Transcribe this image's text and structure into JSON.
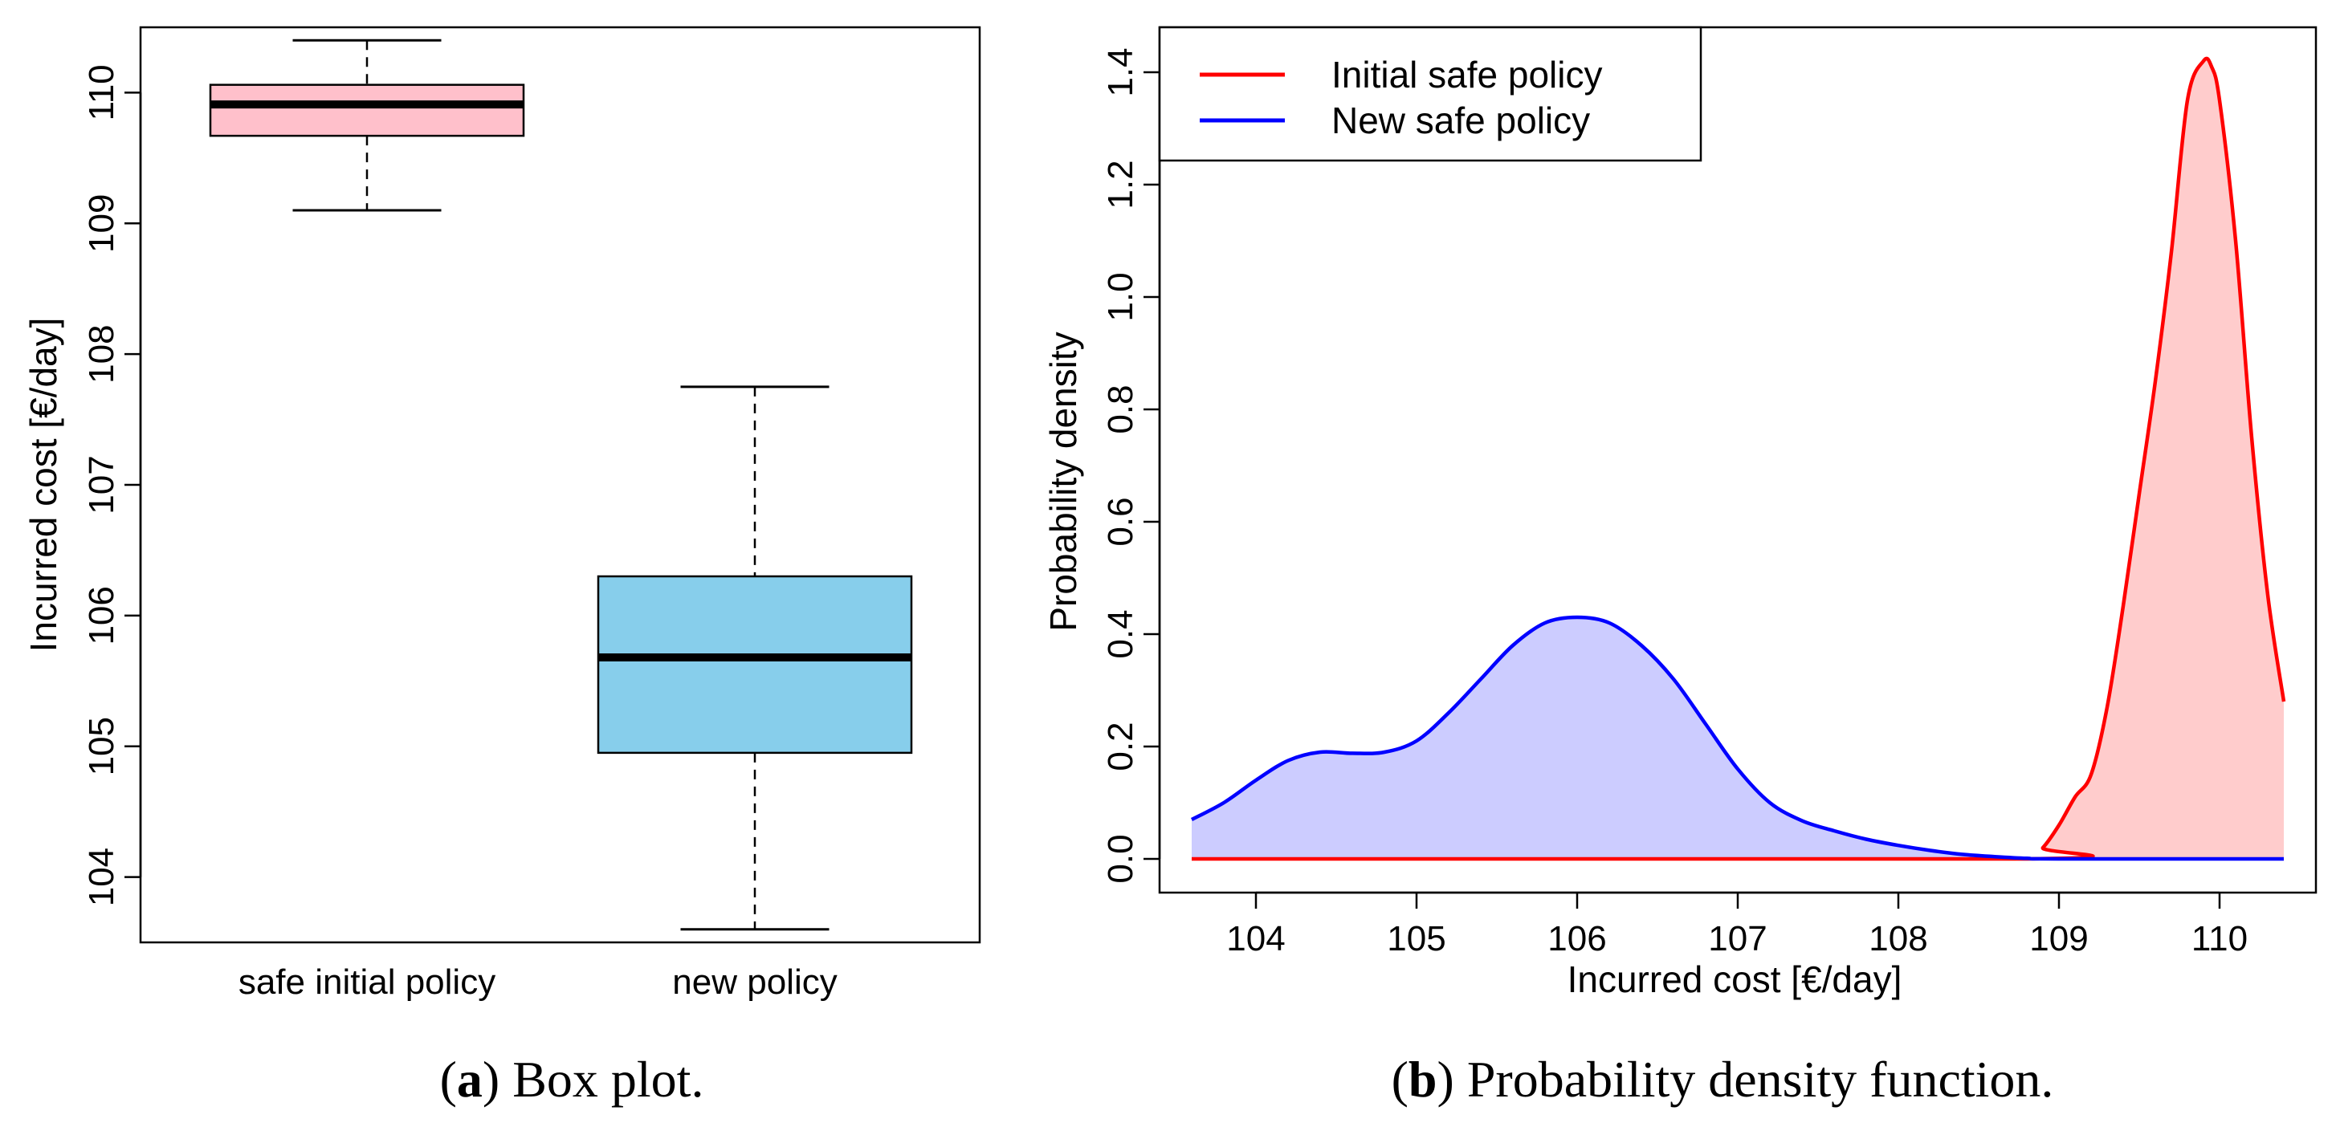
{
  "chart_data": [
    {
      "type": "box",
      "caption": {
        "label": "a",
        "text": "Box plot."
      },
      "ylabel": "Incurred cost [€/day]",
      "ylim": [
        103.5,
        110.5
      ],
      "yticks": [
        104,
        105,
        106,
        107,
        108,
        109,
        110
      ],
      "categories": [
        "safe initial policy",
        "new policy"
      ],
      "boxes": [
        {
          "name": "safe initial policy",
          "min": 109.1,
          "q1": 109.67,
          "median": 109.91,
          "q3": 110.06,
          "max": 110.4,
          "fill": "#ffc0cb"
        },
        {
          "name": "new policy",
          "min": 103.6,
          "q1": 104.95,
          "median": 105.68,
          "q3": 106.3,
          "max": 107.75,
          "fill": "#87ceeb"
        }
      ]
    },
    {
      "type": "area",
      "caption": {
        "label": "b",
        "text": "Probability density function."
      },
      "xlabel": "Incurred cost [€/day]",
      "ylabel": "Probability density",
      "xlim": [
        103.4,
        110.6
      ],
      "ylim": [
        -0.06,
        1.48
      ],
      "xticks": [
        104,
        105,
        106,
        107,
        108,
        109,
        110
      ],
      "yticks": [
        0.0,
        0.2,
        0.4,
        0.6,
        0.8,
        1.0,
        1.2,
        1.4
      ],
      "ytick_labels": [
        "0.0",
        "0.2",
        "0.4",
        "0.6",
        "0.8",
        "1.0",
        "1.2",
        "1.4"
      ],
      "legend": {
        "position": "top-left"
      },
      "series": [
        {
          "name": "Initial safe policy",
          "color": "#ff0000",
          "fill": "#ffcccc",
          "x": [
            103.6,
            108.8,
            108.9,
            109.0,
            109.1,
            109.2,
            109.3,
            109.4,
            109.5,
            109.6,
            109.7,
            109.8,
            109.9,
            109.95,
            110.0,
            110.1,
            110.2,
            110.3,
            110.4
          ],
          "y": [
            0.0,
            0.0,
            0.02,
            0.06,
            0.11,
            0.15,
            0.27,
            0.45,
            0.65,
            0.85,
            1.08,
            1.35,
            1.42,
            1.41,
            1.35,
            1.1,
            0.75,
            0.47,
            0.28
          ]
        },
        {
          "name": "New safe policy",
          "color": "#0000ff",
          "fill": "#ccccff",
          "x": [
            103.6,
            103.8,
            104.0,
            104.2,
            104.4,
            104.6,
            104.8,
            105.0,
            105.2,
            105.4,
            105.6,
            105.8,
            106.0,
            106.2,
            106.4,
            106.6,
            106.8,
            107.0,
            107.2,
            107.4,
            107.6,
            107.8,
            108.0,
            108.2,
            108.4,
            108.6,
            108.8,
            109.0,
            110.4
          ],
          "y": [
            0.07,
            0.1,
            0.14,
            0.175,
            0.19,
            0.188,
            0.19,
            0.21,
            0.26,
            0.32,
            0.38,
            0.42,
            0.43,
            0.42,
            0.38,
            0.32,
            0.24,
            0.16,
            0.1,
            0.068,
            0.05,
            0.035,
            0.024,
            0.015,
            0.008,
            0.004,
            0.001,
            0.0,
            0.0
          ]
        }
      ]
    }
  ]
}
